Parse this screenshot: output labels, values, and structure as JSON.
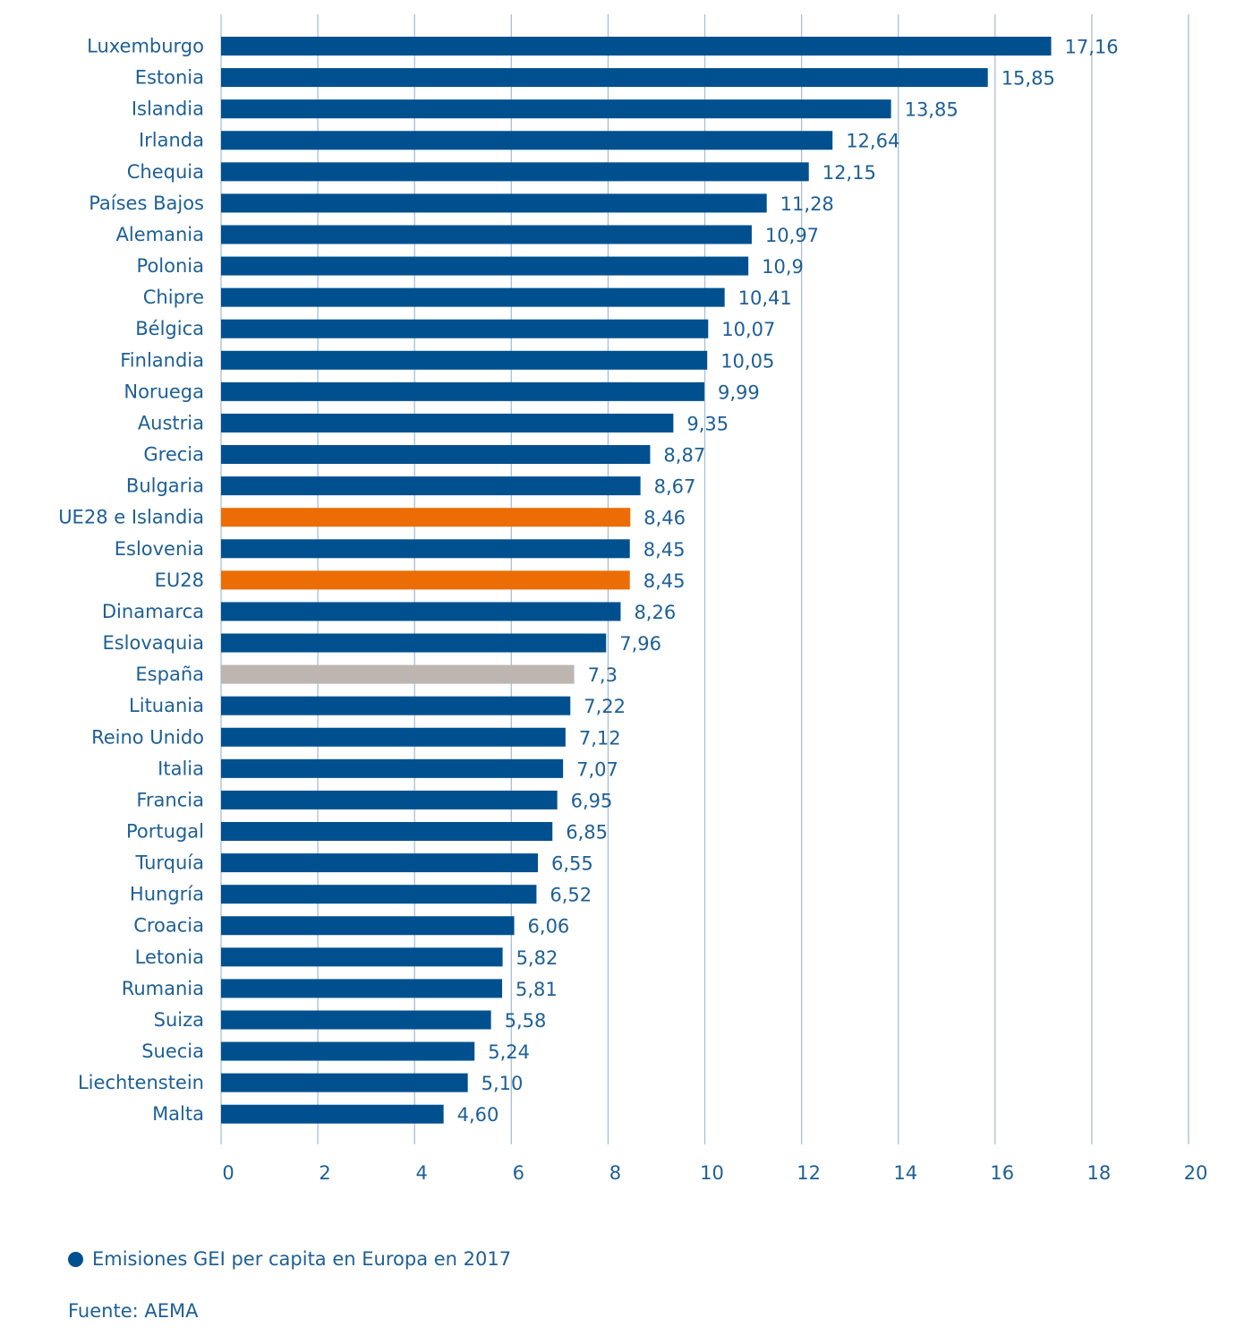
{
  "chart_data": {
    "type": "bar",
    "orientation": "horizontal",
    "categories": [
      "Luxemburgo",
      "Estonia",
      "Islandia",
      "Irlanda",
      "Chequia",
      "Países Bajos",
      "Alemania",
      "Polonia",
      "Chipre",
      "Bélgica",
      "Finlandia",
      "Noruega",
      "Austria",
      "Grecia",
      "Bulgaria",
      "UE28 e Islandia",
      "Eslovenia",
      "EU28",
      "Dinamarca",
      "Eslovaquia",
      "España",
      "Lituania",
      "Reino Unido",
      "Italia",
      "Francia",
      "Portugal",
      "Turquía",
      "Hungría",
      "Croacia",
      "Letonia",
      "Rumania",
      "Suiza",
      "Suecia",
      "Liechtenstein",
      "Malta"
    ],
    "values": [
      17.16,
      15.85,
      13.85,
      12.64,
      12.15,
      11.28,
      10.97,
      10.9,
      10.41,
      10.07,
      10.05,
      9.99,
      9.35,
      8.87,
      8.67,
      8.46,
      8.45,
      8.45,
      8.26,
      7.96,
      7.3,
      7.22,
      7.12,
      7.07,
      6.95,
      6.85,
      6.55,
      6.52,
      6.06,
      5.82,
      5.81,
      5.58,
      5.24,
      5.1,
      4.6
    ],
    "value_labels": [
      "17,16",
      "15,85",
      "13,85",
      "12,64",
      "12,15",
      "11,28",
      "10,97",
      "10,9",
      "10,41",
      "10,07",
      "10,05",
      "9,99",
      "9,35",
      "8,87",
      "8,67",
      "8,46",
      "8,45",
      "8,45",
      "8,26",
      "7,96",
      "7,3",
      "7,22",
      "7,12",
      "7,07",
      "6,95",
      "6,85",
      "6,55",
      "6,52",
      "6,06",
      "5,82",
      "5,81",
      "5,58",
      "5,24",
      "5,10",
      "4,60"
    ],
    "bar_colors": [
      "#00508f",
      "#00508f",
      "#00508f",
      "#00508f",
      "#00508f",
      "#00508f",
      "#00508f",
      "#00508f",
      "#00508f",
      "#00508f",
      "#00508f",
      "#00508f",
      "#00508f",
      "#00508f",
      "#00508f",
      "#ec6d05",
      "#00508f",
      "#ec6d05",
      "#00508f",
      "#00508f",
      "#bdb6b0",
      "#00508f",
      "#00508f",
      "#00508f",
      "#00508f",
      "#00508f",
      "#00508f",
      "#00508f",
      "#00508f",
      "#00508f",
      "#00508f",
      "#00508f",
      "#00508f",
      "#00508f",
      "#00508f"
    ],
    "xlim": [
      0,
      20
    ],
    "xticks": [
      "0",
      "2",
      "4",
      "6",
      "8",
      "10",
      "12",
      "14",
      "16",
      "18",
      "20"
    ],
    "grid": true,
    "legend": "bottom-left",
    "series_name": "Emisiones GEI per capita en Europa en 2017"
  },
  "colors": {
    "primary": "#00508f",
    "highlight": "#ec6d05",
    "spain": "#bdb6b0",
    "grid": "#a9bfd3",
    "text": "#1d5f96"
  },
  "legend": {
    "label": "Emisiones GEI per capita en Europa en 2017"
  },
  "source": "Fuente: AEMA"
}
